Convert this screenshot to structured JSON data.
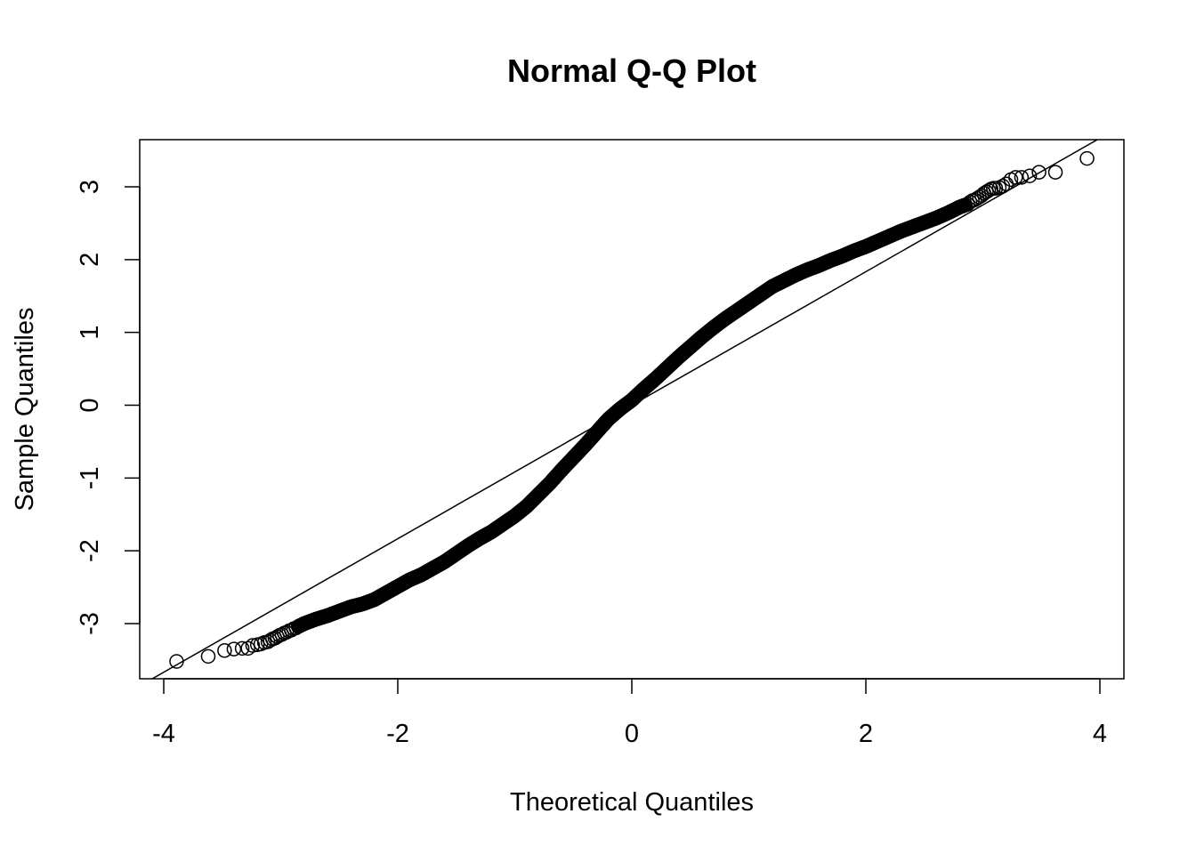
{
  "chart_data": {
    "type": "scatter",
    "title": "Normal Q-Q Plot",
    "xlabel": "Theoretical Quantiles",
    "ylabel": "Sample Quantiles",
    "xlim": [
      -4,
      4
    ],
    "ylim": [
      -3.5,
      3.5
    ],
    "x_ticks": [
      -4,
      -2,
      0,
      2,
      4
    ],
    "x_tick_labels": [
      "-4",
      "-2",
      "0",
      "2",
      "4"
    ],
    "y_ticks": [
      -3,
      -2,
      -1,
      0,
      1,
      2,
      3
    ],
    "y_tick_labels": [
      "-3",
      "-2",
      "-1",
      "0",
      "1",
      "2",
      "3"
    ],
    "grid": false,
    "reference_line": {
      "slope": 0.917,
      "intercept": 0.0
    },
    "series": [
      {
        "x": [
          -3.89,
          -3.62,
          -3.48,
          -3.4,
          -3.33,
          -3.28,
          -3.24,
          -3.2,
          -3.17,
          -3.14,
          -3.11,
          -3.09,
          -3.07,
          -3.05,
          -3.03,
          -3.01,
          -2.99,
          -2.97,
          -2.95,
          -2.93,
          -2.91,
          -2.89,
          -2.87,
          -2.85,
          -2.8,
          -2.7,
          -2.6,
          -2.5,
          -2.4,
          -2.3,
          -2.2,
          -2.1,
          -2.0,
          -1.9,
          -1.8,
          -1.7,
          -1.6,
          -1.5,
          -1.4,
          -1.3,
          -1.2,
          -1.1,
          -1.0,
          -0.9,
          -0.8,
          -0.7,
          -0.6,
          -0.5,
          -0.4,
          -0.3,
          -0.2,
          -0.1,
          0.0,
          0.1,
          0.2,
          0.3,
          0.4,
          0.5,
          0.6,
          0.7,
          0.8,
          0.9,
          1.0,
          1.1,
          1.2,
          1.3,
          1.4,
          1.5,
          1.6,
          1.7,
          1.8,
          1.9,
          2.0,
          2.1,
          2.2,
          2.3,
          2.4,
          2.5,
          2.6,
          2.7,
          2.8,
          2.85,
          2.87,
          2.89,
          2.91,
          2.93,
          2.95,
          2.97,
          2.99,
          3.01,
          3.03,
          3.05,
          3.07,
          3.09,
          3.11,
          3.14,
          3.17,
          3.2,
          3.24,
          3.28,
          3.33,
          3.4,
          3.48,
          3.62,
          3.89
        ],
        "y": [
          -3.52,
          -3.45,
          -3.37,
          -3.35,
          -3.34,
          -3.34,
          -3.3,
          -3.29,
          -3.28,
          -3.26,
          -3.25,
          -3.23,
          -3.21,
          -3.2,
          -3.18,
          -3.16,
          -3.15,
          -3.13,
          -3.12,
          -3.1,
          -3.09,
          -3.07,
          -3.06,
          -3.04,
          -3.0,
          -2.94,
          -2.89,
          -2.83,
          -2.77,
          -2.73,
          -2.67,
          -2.58,
          -2.49,
          -2.4,
          -2.33,
          -2.24,
          -2.15,
          -2.04,
          -1.93,
          -1.83,
          -1.74,
          -1.63,
          -1.52,
          -1.39,
          -1.23,
          -1.07,
          -0.89,
          -0.72,
          -0.55,
          -0.37,
          -0.19,
          -0.05,
          0.07,
          0.22,
          0.36,
          0.51,
          0.66,
          0.8,
          0.94,
          1.07,
          1.19,
          1.3,
          1.41,
          1.52,
          1.63,
          1.71,
          1.79,
          1.86,
          1.92,
          1.99,
          2.05,
          2.12,
          2.18,
          2.25,
          2.32,
          2.39,
          2.45,
          2.51,
          2.57,
          2.64,
          2.72,
          2.75,
          2.76,
          2.79,
          2.81,
          2.82,
          2.84,
          2.86,
          2.88,
          2.91,
          2.93,
          2.95,
          2.97,
          2.98,
          2.98,
          2.99,
          3.01,
          3.04,
          3.1,
          3.13,
          3.13,
          3.15,
          3.2,
          3.2,
          3.39
        ]
      }
    ]
  }
}
